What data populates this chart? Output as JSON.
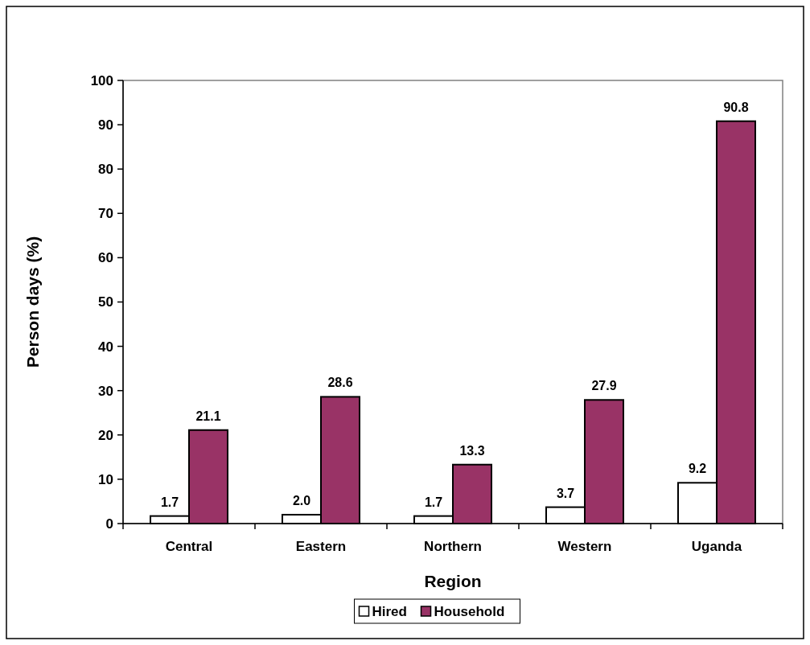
{
  "chart_data": {
    "type": "bar",
    "xlabel": "Region",
    "ylabel": "Person days (%)",
    "categories": [
      "Central",
      "Eastern",
      "Northern",
      "Western",
      "Uganda"
    ],
    "series": [
      {
        "name": "Hired",
        "color": "#ffffff",
        "values": [
          1.7,
          2.0,
          1.7,
          3.7,
          9.2
        ],
        "value_labels": [
          "1.7",
          "2.0",
          "1.7",
          "3.7",
          "9.2"
        ]
      },
      {
        "name": "Household",
        "color": "#993366",
        "values": [
          21.1,
          28.6,
          13.3,
          27.9,
          90.8
        ],
        "value_labels": [
          "21.1",
          "28.6",
          "13.3",
          "27.9",
          "90.8"
        ]
      }
    ],
    "ylim": [
      0,
      100
    ],
    "yticks": [
      0,
      10,
      20,
      30,
      40,
      50,
      60,
      70,
      80,
      90,
      100
    ],
    "grid": false,
    "legend": "bottom"
  }
}
